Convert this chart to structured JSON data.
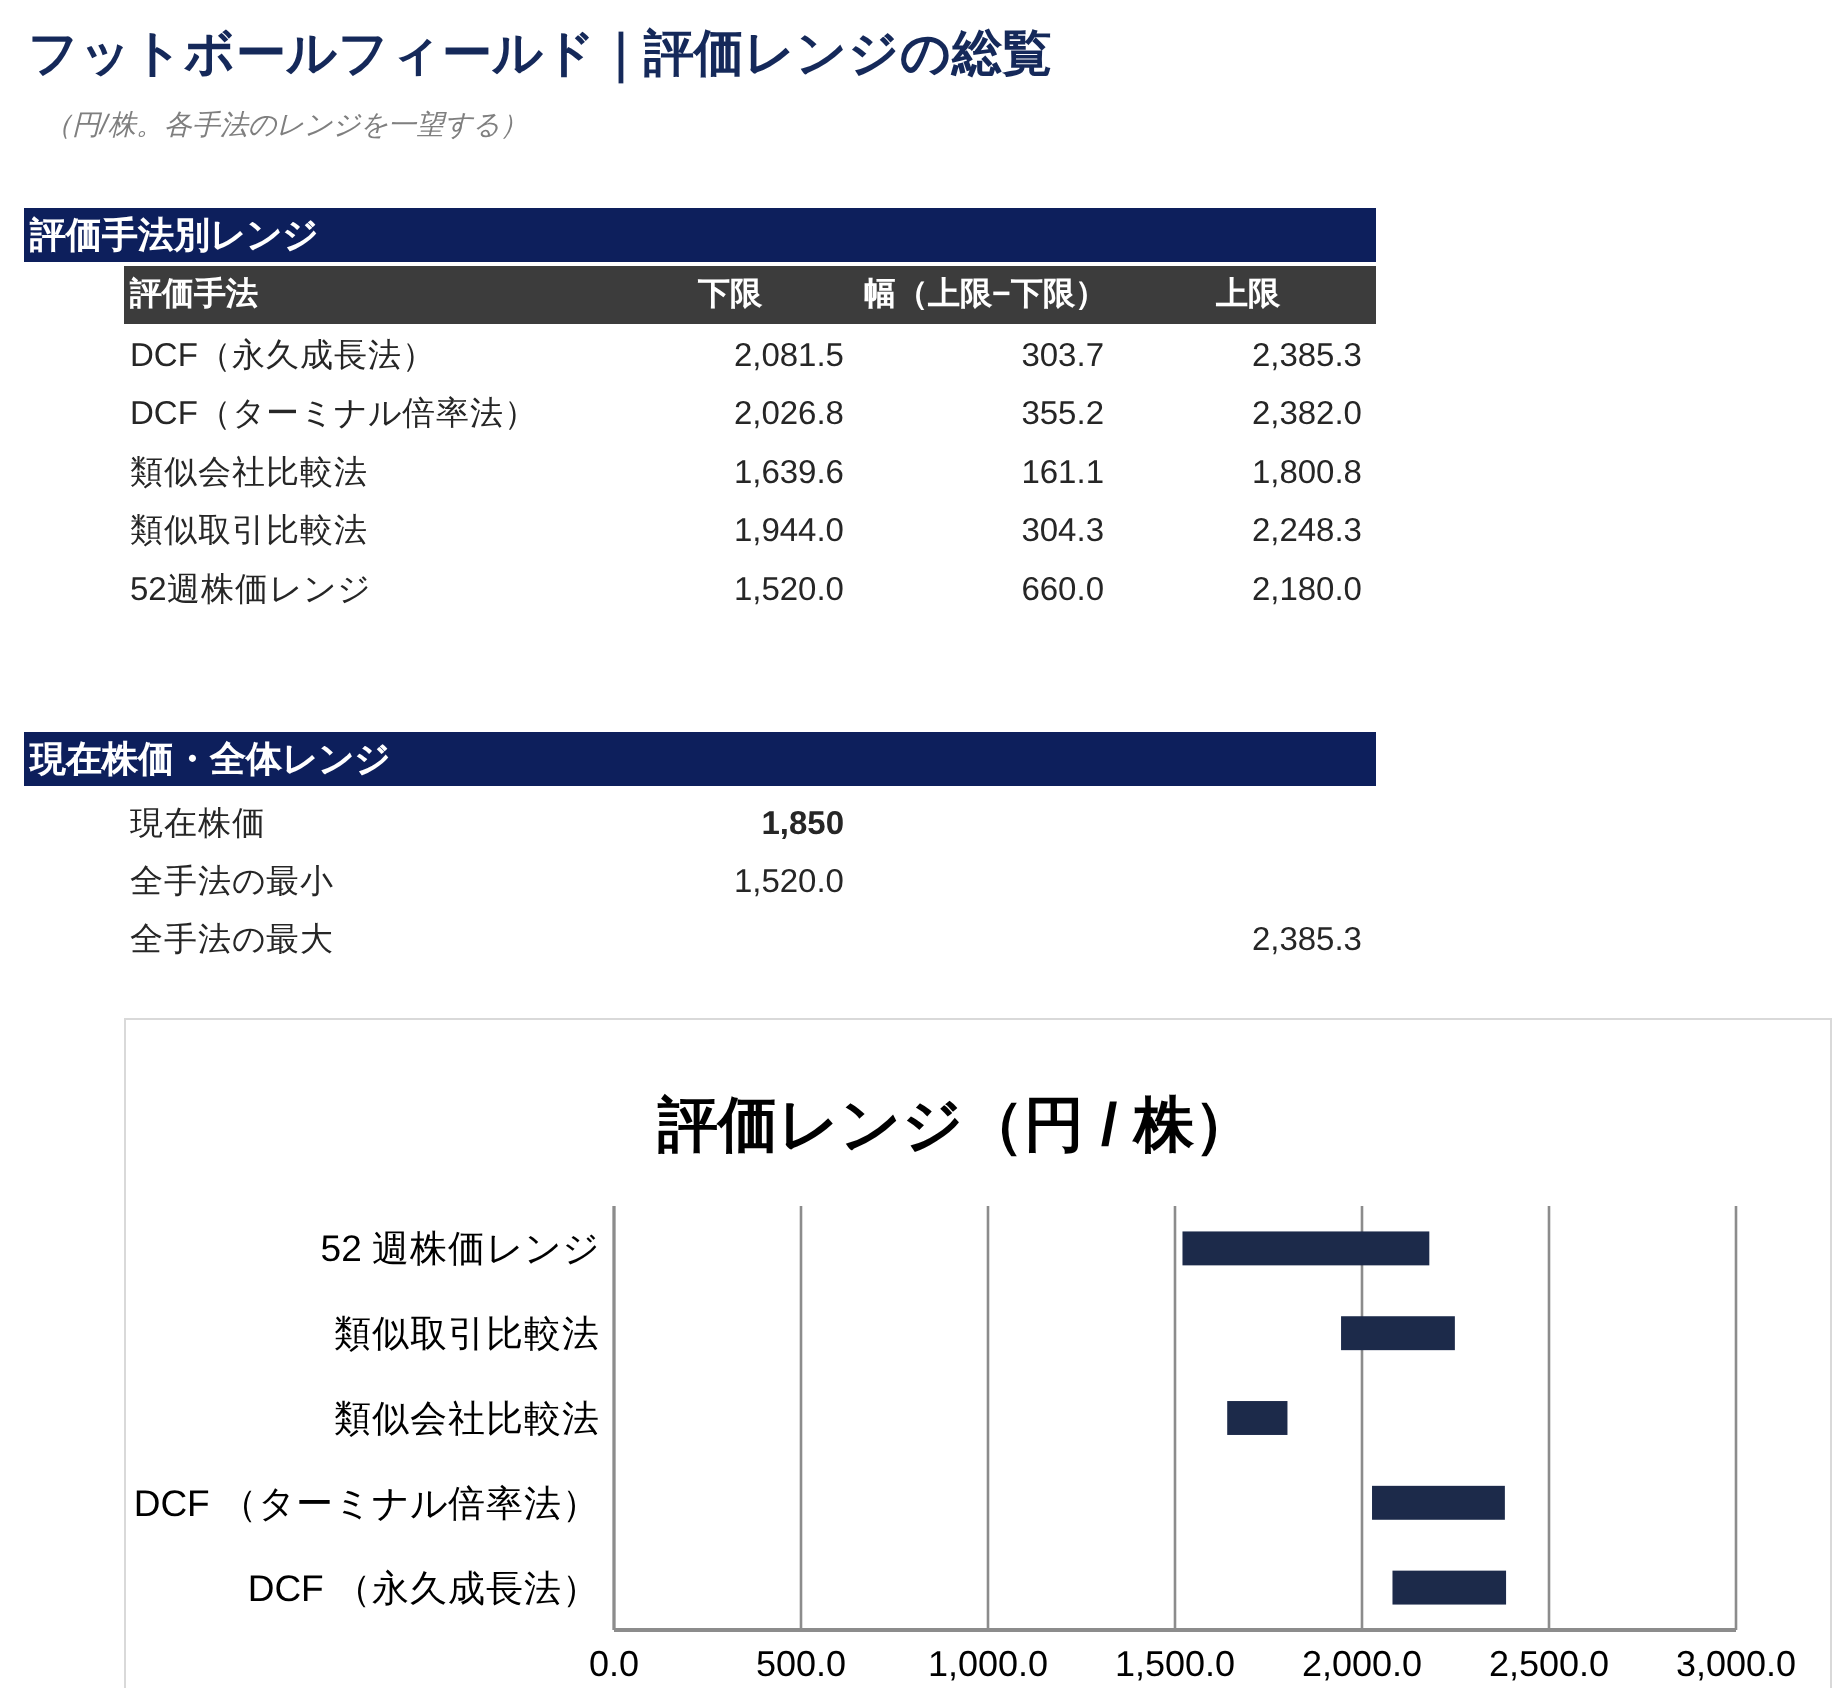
{
  "chart_data": [
    {
      "type": "other",
      "title": "フットボールフィールド｜評価レンジの総覧",
      "subtitle": "（円/株。各手法のレンジを一望する）"
    },
    {
      "type": "other",
      "title": "評価手法別レンジ",
      "annotations": [
        "評価手法",
        "下限",
        "幅（上限−下限）",
        "上限",
        "DCF（永久成長法）",
        "2,081.5",
        "303.7",
        "2,385.3",
        "DCF（ターミナル倍率法）",
        "2,026.8",
        "355.2",
        "2,382.0",
        "類似会社比較法",
        "1,639.6",
        "161.1",
        "1,800.8",
        "類似取引比較法",
        "1,944.0",
        "304.3",
        "2,248.3",
        "52週株価レンジ",
        "1,520.0",
        "660.0",
        "2,180.0"
      ]
    },
    {
      "type": "other",
      "title": "現在株価・全体レンジ",
      "annotations": [
        "現在株価",
        "1,850",
        "全手法の最小",
        "1,520.0",
        "全手法の最大",
        "2,385.3"
      ]
    },
    {
      "type": "bar",
      "orientation": "horizontal",
      "title": "評価レンジ（円 / 株）",
      "categories": [
        "52 週株価レンジ",
        "類似取引比較法",
        "類似会社比較法",
        "DCF （ターミナル倍率法）",
        "DCF （永久成長法）"
      ],
      "base": [
        1520.0,
        1944.0,
        1639.6,
        2026.8,
        2081.5
      ],
      "values": [
        660.0,
        304.3,
        161.1,
        355.2,
        303.7
      ],
      "color": "#1c2a4a",
      "xlim": [
        0,
        3000
      ],
      "xticks": [
        {
          "value": 0,
          "label": "0.0"
        },
        {
          "value": 500,
          "label": "500.0"
        },
        {
          "value": 1000,
          "label": "1,000.0"
        },
        {
          "value": 1500,
          "label": "1,500.0"
        },
        {
          "value": 2000,
          "label": "2,000.0"
        },
        {
          "value": 2500,
          "label": "2,500.0"
        },
        {
          "value": 3000,
          "label": "3,000.0"
        }
      ],
      "grid": "x"
    }
  ]
}
